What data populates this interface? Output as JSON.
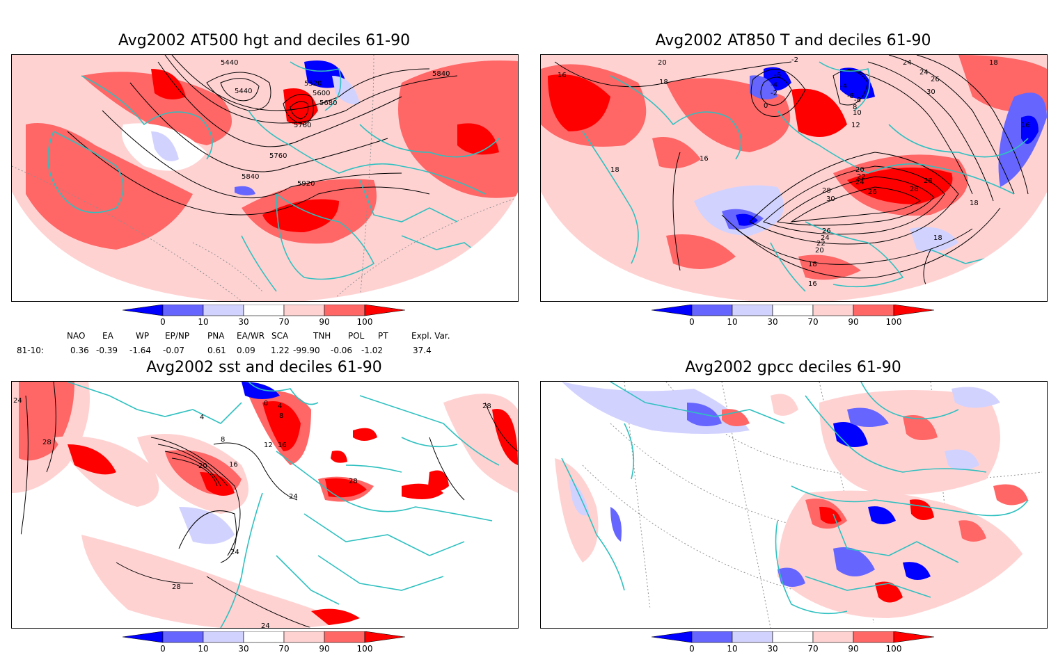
{
  "panels": [
    {
      "id": "hgt500",
      "title": "Avg2002 AT500 hgt and deciles 61-90",
      "contour_labels": [
        "5440",
        "5440",
        "5520",
        "5600",
        "5680",
        "5760",
        "5760",
        "5840",
        "5840",
        "5920"
      ]
    },
    {
      "id": "t850",
      "title": "Avg2002 AT850 T and deciles 61-90",
      "contour_labels": [
        "16",
        "20",
        "18",
        "-2",
        "-6",
        "-4",
        "-4",
        "-2",
        "0",
        "24",
        "24",
        "26",
        "30",
        "18",
        "-8",
        "-8",
        "8",
        "10",
        "12",
        "16",
        "18",
        "16",
        "20",
        "22",
        "24",
        "28",
        "30",
        "26",
        "28",
        "28",
        "18",
        "26",
        "24",
        "22",
        "20",
        "18",
        "16",
        "18"
      ]
    },
    {
      "id": "sst",
      "title": "Avg2002 sst and deciles 61-90",
      "contour_labels": [
        "24",
        "28",
        "0",
        "4",
        "8",
        "12",
        "16",
        "20",
        "8",
        "4",
        "16",
        "28",
        "24",
        "28",
        "24",
        "28",
        "24"
      ]
    },
    {
      "id": "gpcc",
      "title": "Avg2002 gpcc deciles 61-90",
      "contour_labels": []
    }
  ],
  "colorbar": {
    "ticks": [
      "0",
      "10",
      "30",
      "70",
      "90",
      "100"
    ],
    "colors": {
      "deep_blue": "#0000ff",
      "mid_blue": "#6666ff",
      "light_blue": "#d2d2ff",
      "white": "#ffffff",
      "light_red": "#ffd2d2",
      "mid_red": "#ff6666",
      "deep_red": "#ff0000"
    }
  },
  "indices": {
    "headers": [
      "NAO",
      "EA",
      "WP",
      "EP/NP",
      "PNA",
      "EA/WR",
      "SCA",
      "TNH",
      "POL",
      "PT",
      "Expl. Var."
    ],
    "row_label": "81-10:",
    "values": [
      "0.36",
      "-0.39",
      "-1.64",
      "-0.07",
      "0.61",
      "0.09",
      "1.22",
      "-99.90",
      "-0.06",
      "-1.02",
      "37.4"
    ]
  },
  "colors": {
    "coast": "#30c0c0",
    "contour": "#000000",
    "grid": "#909090"
  }
}
